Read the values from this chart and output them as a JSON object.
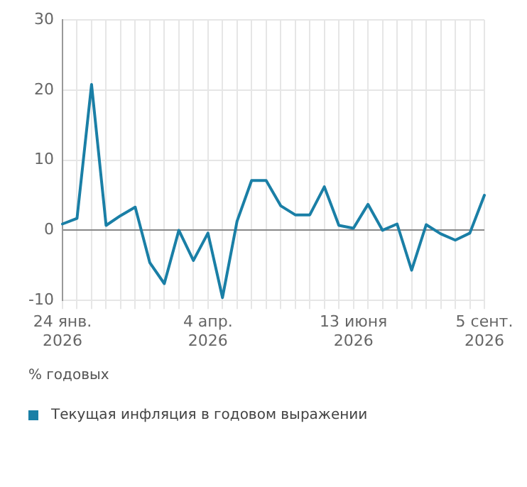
{
  "chart_data": {
    "type": "line",
    "ylabel": "% годовых",
    "categories": [
      "24 янв. 2026",
      null,
      null,
      null,
      null,
      null,
      null,
      null,
      null,
      null,
      "4 апр. 2026",
      null,
      null,
      null,
      null,
      null,
      null,
      null,
      null,
      null,
      "13 июня 2026",
      null,
      null,
      null,
      null,
      null,
      null,
      null,
      null,
      "5 сент. 2026"
    ],
    "series": [
      {
        "name": "Текущая инфляция в годовом выражении",
        "color": "#1a7fa6",
        "values": [
          0.9,
          1.7,
          20.8,
          0.7,
          2.1,
          3.3,
          -4.6,
          -7.6,
          0,
          -4.3,
          -0.4,
          -9.6,
          1.3,
          7.1,
          7.1,
          3.5,
          2.2,
          2.2,
          6.2,
          0.7,
          0.3,
          3.7,
          0,
          0.9,
          -5.7,
          0.8,
          -0.5,
          -1.4,
          -0.4,
          5.0
        ]
      }
    ],
    "ylim": [
      -10,
      30
    ],
    "yticks": [
      -10,
      0,
      10,
      20,
      30
    ],
    "grid": true,
    "legend": "bottom left",
    "marker": "none",
    "line_style": "solid"
  }
}
